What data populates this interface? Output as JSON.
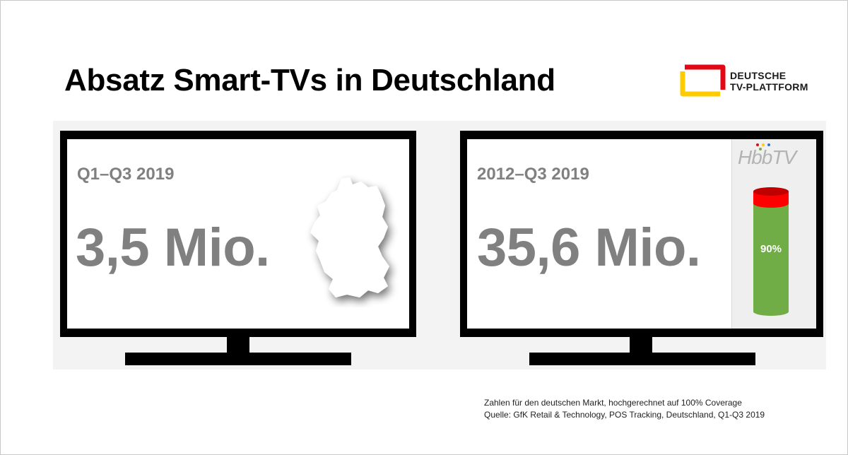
{
  "title": "Absatz Smart-TVs in Deutschland",
  "logo": {
    "line1": "DEUTSCHE",
    "line2": "TV-PLATTFORM",
    "colors": [
      "#e30613",
      "#ffcc00"
    ]
  },
  "tv_left": {
    "period": "Q1–Q3 2019",
    "value": "3,5 Mio.",
    "graphic": "germany-map"
  },
  "tv_right": {
    "period": "2012–Q3 2019",
    "value": "35,6 Mio.",
    "hbbtv": {
      "logo": "HbbTV",
      "share_label": "90%",
      "share": 0.9,
      "colors": {
        "share": "#70ad47",
        "rest": "#ff0000"
      }
    }
  },
  "footnote": {
    "line1": "Zahlen für den deutschen Markt, hochgerechnet auf 100% Coverage",
    "line2": "Quelle: GfK Retail & Technology, POS Tracking, Deutschland, Q1-Q3 2019"
  }
}
